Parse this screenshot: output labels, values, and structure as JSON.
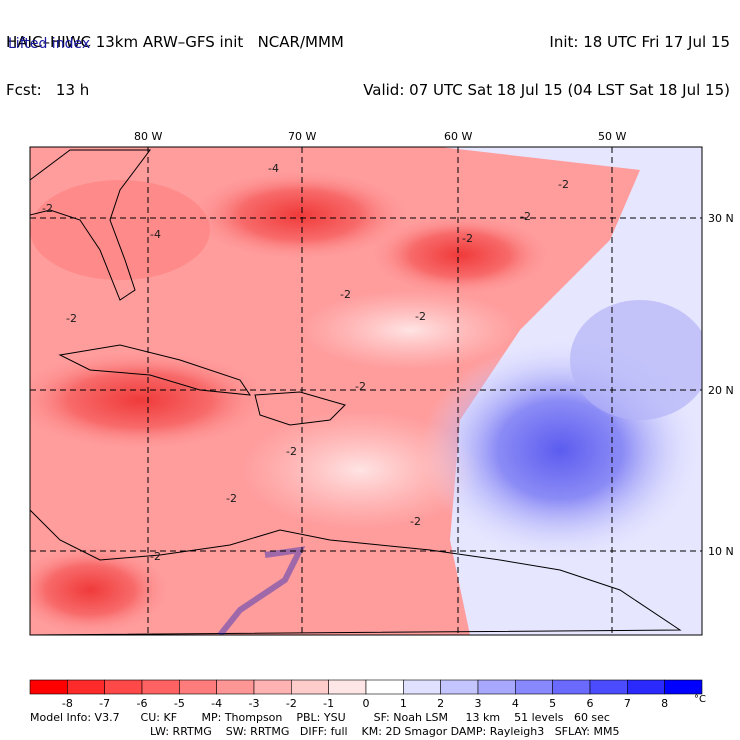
{
  "header": {
    "line1_left": "HAIC–HIWC 13km ARW–GFS init   NCAR/MMM",
    "line2_left": "Fcst:   13 h",
    "line1_right": "Init: 18 UTC Fri 17 Jul 15",
    "line2_right": "Valid: 07 UTC Sat 18 Jul 15 (04 LST Sat 18 Jul 15)",
    "field_name": "Lifted index"
  },
  "map": {
    "lon_labels": [
      "80 W",
      "70 W",
      "60 W",
      "50 W"
    ],
    "lat_labels": [
      "30 N",
      "20 N",
      "10 N"
    ],
    "contour_labels": [
      "-4",
      "-4",
      "-2",
      "-2",
      "-2",
      "-2",
      "-2",
      "-2",
      "-2",
      "-2",
      "-2",
      "-2",
      "-2",
      "-2"
    ]
  },
  "colorbar": {
    "ticks": [
      "-8",
      "-7",
      "-6",
      "-5",
      "-4",
      "-3",
      "-2",
      "-1",
      "0",
      "1",
      "2",
      "3",
      "4",
      "5",
      "6",
      "7",
      "8"
    ],
    "unit": "°C",
    "colors": [
      "#ff0000",
      "#ff2a2a",
      "#ff4848",
      "#ff6262",
      "#ff7c7c",
      "#ff9696",
      "#ffb2b2",
      "#ffcccc",
      "#ffe6e6",
      "#ffffff",
      "#e0e0ff",
      "#c4c4ff",
      "#a8a8ff",
      "#8888ff",
      "#6a6aff",
      "#4c4cff",
      "#2a2aff",
      "#0000ff"
    ]
  },
  "footer": {
    "line1": "Model Info: V3.7      CU: KF       MP: Thompson    PBL: YSU        SF: Noah LSM     13 km    51 levels   60 sec",
    "line2": "LW: RRTMG    SW: RRTMG   DIFF: full    KM: 2D Smagor DAMP: Rayleigh3   SFLAY: MM5"
  }
}
